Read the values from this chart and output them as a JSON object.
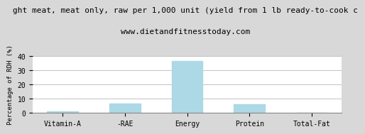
{
  "title_line1": "ght meat, meat only, raw per 1,000 unit (yield from 1 lb ready-to-cook c",
  "title_line2": "www.dietandfitnesstoday.com",
  "categories": [
    "Vitamin-A",
    "-RAE",
    "Energy",
    "Protein",
    "Total-Fat"
  ],
  "values": [
    1.0,
    6.5,
    36.5,
    6.2,
    0.3
  ],
  "bar_color": "#add8e6",
  "ylabel": "Percentage of RDH (%)",
  "ylim": [
    0,
    40
  ],
  "yticks": [
    0,
    10,
    20,
    30,
    40
  ],
  "background_color": "#d8d8d8",
  "plot_bg_color": "#ffffff",
  "title_fontsize": 8,
  "subtitle_fontsize": 8,
  "ylabel_fontsize": 6.5,
  "tick_fontsize": 7,
  "grid_color": "#aaaaaa"
}
